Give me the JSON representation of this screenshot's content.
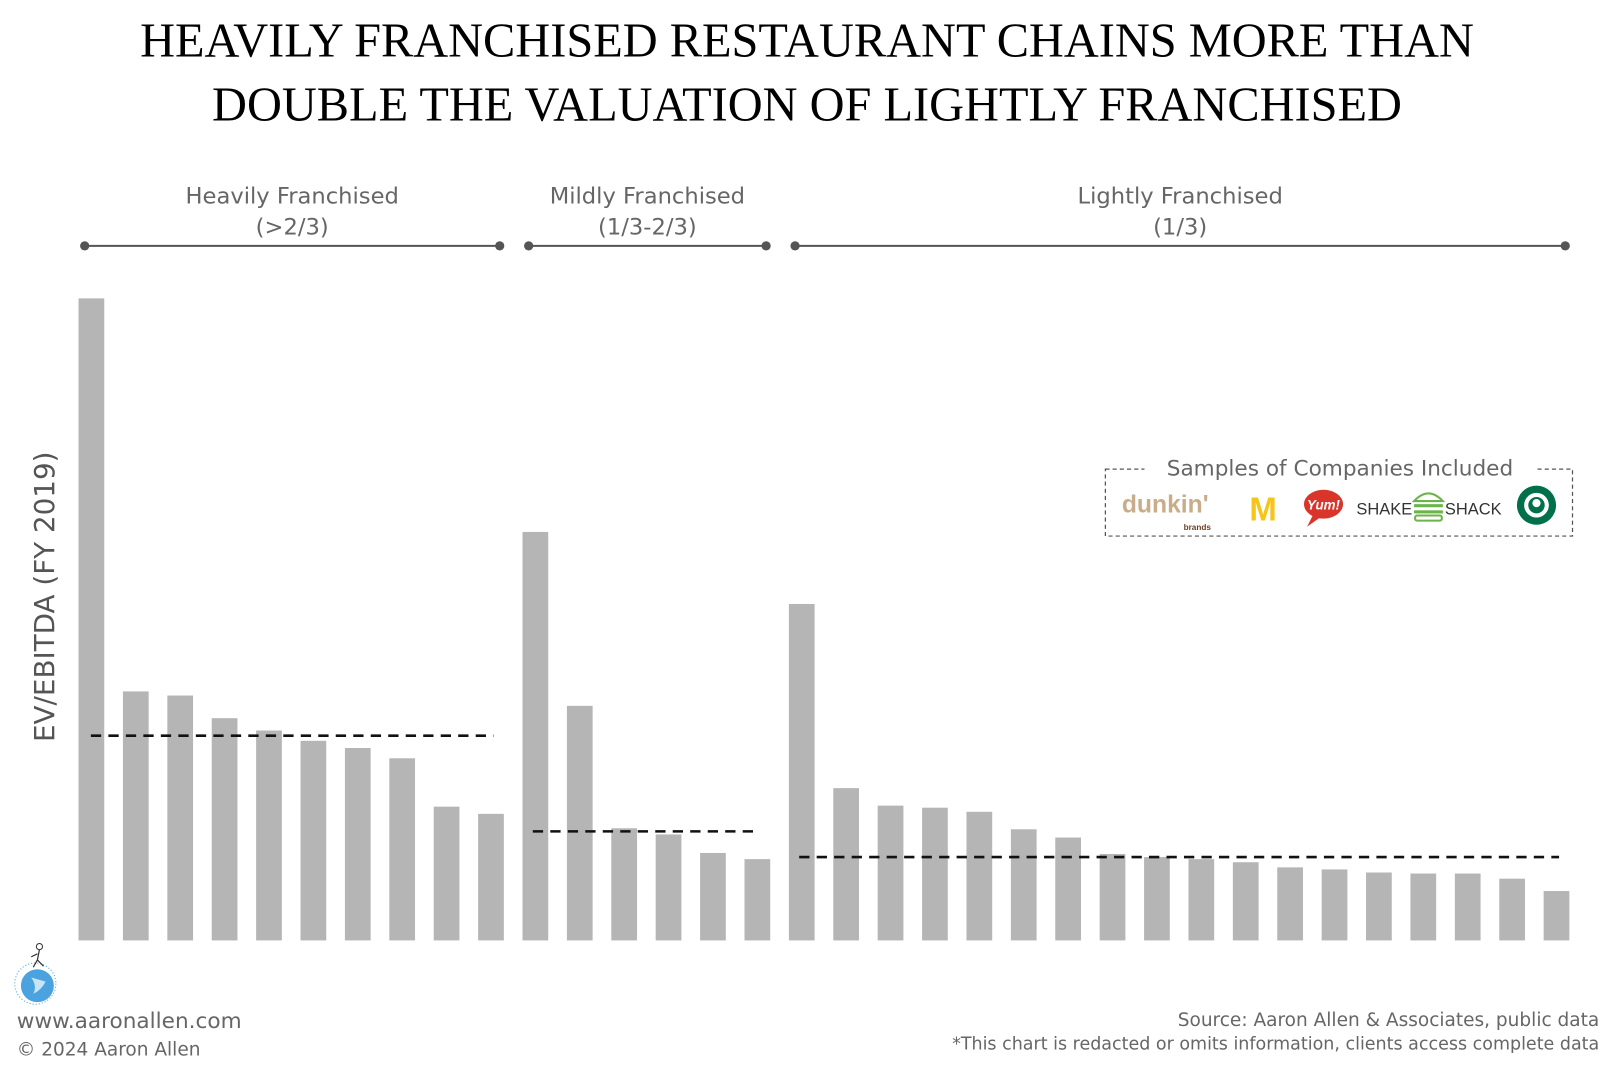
{
  "title": {
    "line1": "HEAVILY FRANCHISED RESTAURANT CHAINS MORE THAN",
    "line2": "DOUBLE THE VALUATION OF LIGHTLY FRANCHISED"
  },
  "legend": {
    "title": "Samples of Companies Included",
    "logos": [
      {
        "name": "dunkin-brands",
        "text": "dunkin'",
        "sub": "brands"
      },
      {
        "name": "mcdonalds",
        "text": "M"
      },
      {
        "name": "yum",
        "text": "Yum!"
      },
      {
        "name": "shake-shack",
        "text_left": "SHAKE",
        "text_right": "SHACK"
      },
      {
        "name": "starbucks",
        "text": ""
      }
    ]
  },
  "footer": {
    "website": "www.aaronallen.com",
    "copyright": "© 2024 Aaron Allen",
    "source": "Source: Aaron Allen & Associates, public data",
    "note": "*This chart is redacted or omits information, clients access complete data"
  },
  "colors": {
    "bar": "#b5b5b5",
    "average_line": "#111111",
    "bracket": "#555555"
  },
  "chart_data": {
    "type": "bar",
    "title": "HEAVILY FRANCHISED RESTAURANT CHAINS MORE THAN DOUBLE THE VALUATION OF LIGHTLY FRANCHISED",
    "ylabel": "EV/EBITDA (FY 2019)",
    "xlabel": "",
    "y_ticks_shown": false,
    "grid": false,
    "values_note_units": "relative (no axis scale printed)",
    "groups": [
      {
        "label": "Heavily Franchised",
        "sublabel": "(>2/3)",
        "values": [
          62.4,
          24.2,
          23.8,
          21.6,
          20.4,
          19.4,
          18.7,
          17.7,
          13.0,
          12.3
        ],
        "average": 19.9
      },
      {
        "label": "Mildly Franchised",
        "sublabel": "(1/3-2/3)",
        "values": [
          39.7,
          22.8,
          10.9,
          10.3,
          8.5,
          7.9
        ],
        "average": 10.6
      },
      {
        "label": "Lightly Franchised",
        "sublabel": "(1/3)",
        "values": [
          32.7,
          14.8,
          13.1,
          12.9,
          12.5,
          10.8,
          10.0,
          8.4,
          8.1,
          7.9,
          7.6,
          7.1,
          6.9,
          6.6,
          6.5,
          6.5,
          6.0,
          4.8
        ],
        "average": 8.1
      }
    ]
  }
}
